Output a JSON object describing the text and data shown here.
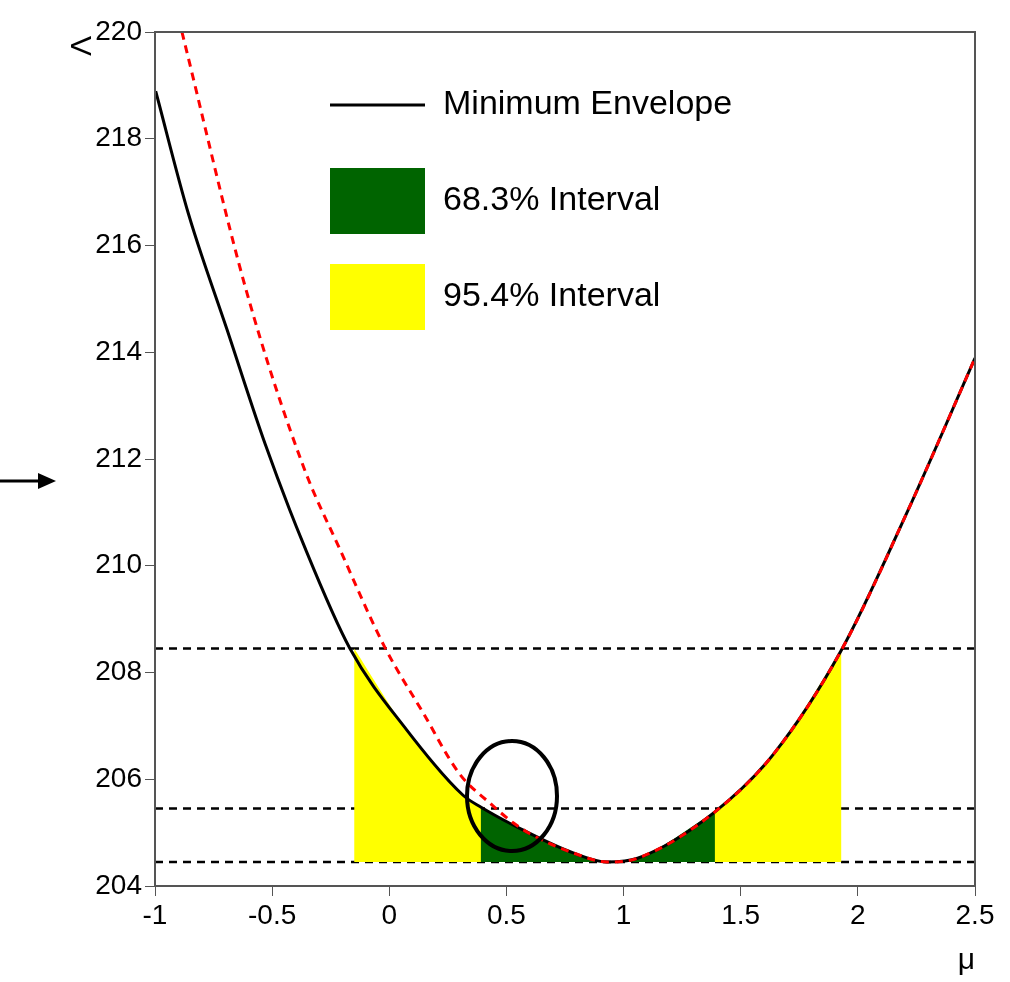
{
  "chart_data": {
    "type": "line",
    "xlabel": "μ",
    "ylabel": "Λ",
    "xlim": [
      -1,
      2.5
    ],
    "xticks": [
      -1,
      -0.5,
      0,
      0.5,
      1,
      1.5,
      2,
      2.5
    ],
    "ylim": [
      204,
      220
    ],
    "yticks": [
      204,
      206,
      208,
      210,
      212,
      214,
      216,
      218,
      220
    ],
    "grid": false,
    "legend": "top right",
    "marker": "none",
    "series": [
      {
        "name": "Minimum Envelope",
        "color": "#000000",
        "line_style": "solid",
        "x": [
          -0.997,
          -0.857,
          -0.693,
          -0.529,
          -0.365,
          -0.168,
          0.075,
          0.315,
          0.39,
          0.57,
          0.785,
          0.93,
          1.06,
          1.39,
          1.64,
          1.93,
          2.21,
          2.5
        ],
        "values": [
          218.89,
          216.59,
          214.43,
          212.27,
          210.39,
          208.45,
          206.92,
          205.7,
          205.48,
          205.05,
          204.62,
          204.45,
          204.52,
          205.39,
          206.47,
          208.42,
          211.0,
          213.89
        ]
      },
      {
        "name": "68.3% Interval",
        "type": "area",
        "color": "#006400",
        "x": [
          0.39,
          0.57,
          0.785,
          0.93,
          1.06,
          1.39
        ],
        "values": [
          205.48,
          205.05,
          204.62,
          204.45,
          204.52,
          205.39
        ]
      },
      {
        "name": "95.4% Interval",
        "type": "area",
        "color": "#ffff00",
        "x": [
          -0.15,
          0.075,
          0.315,
          0.39,
          0.57,
          0.785,
          0.93,
          1.06,
          1.39,
          1.64,
          1.93
        ],
        "values": [
          208.45,
          206.92,
          205.7,
          205.48,
          205.05,
          204.62,
          204.45,
          204.52,
          205.39,
          206.47,
          208.42
        ]
      },
      {
        "color": "#ff0000",
        "line_style": "dashed",
        "x": [
          -0.885,
          -0.61,
          -0.365,
          -0.21,
          -0.02,
          0.145,
          0.3,
          0.43,
          0.53,
          0.6,
          0.785,
          0.93,
          1.06,
          1.39,
          1.64,
          1.93,
          2.21,
          2.5
        ],
        "values": [
          220,
          215.15,
          211.84,
          210.3,
          208.48,
          207.24,
          206.1,
          205.55,
          205.18,
          204.98,
          204.62,
          204.45,
          204.52,
          205.39,
          206.47,
          208.42,
          211.0,
          213.89
        ]
      }
    ],
    "ref_lines": [
      {
        "axis": "y",
        "value": 208.45,
        "line_style": "dashed",
        "color": "#000000"
      },
      {
        "axis": "y",
        "value": 205.45,
        "line_style": "dashed",
        "color": "#000000"
      },
      {
        "axis": "y",
        "value": 204.45,
        "line_style": "dashed",
        "color": "#000000"
      }
    ]
  }
}
